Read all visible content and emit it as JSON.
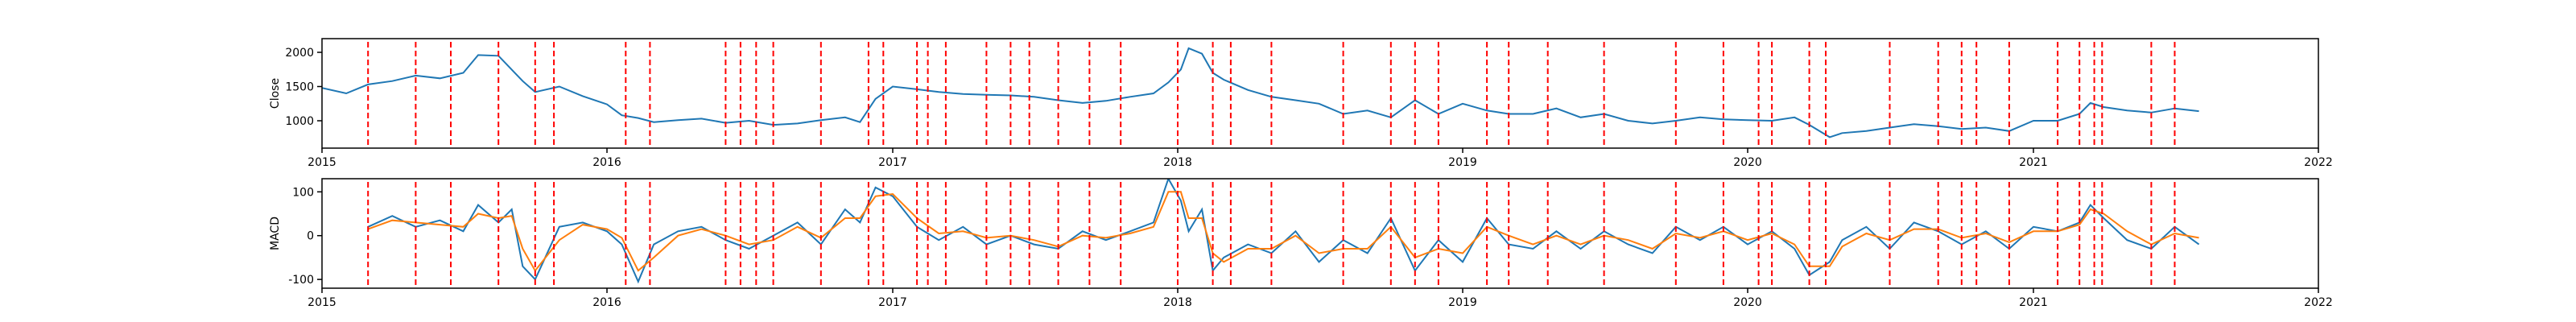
{
  "chart_data": [
    {
      "type": "line",
      "title": "",
      "xlabel": "",
      "ylabel": "Close",
      "xlim": [
        "2015-01-01",
        "2022-01-01"
      ],
      "ylim": [
        600,
        2200
      ],
      "yticks": [
        1000,
        1500,
        2000
      ],
      "xticks": [
        "2015",
        "2016",
        "2017",
        "2018",
        "2019",
        "2020",
        "2021",
        "2022"
      ],
      "grid": false,
      "series": [
        {
          "color": "#1f77b4",
          "x": [
            "2015-01-01",
            "2015-02-01",
            "2015-03-01",
            "2015-04-01",
            "2015-05-01",
            "2015-06-01",
            "2015-07-01",
            "2015-07-20",
            "2015-08-15",
            "2015-09-15",
            "2015-10-01",
            "2015-11-01",
            "2015-12-01",
            "2016-01-01",
            "2016-01-20",
            "2016-02-10",
            "2016-03-01",
            "2016-04-01",
            "2016-05-01",
            "2016-06-01",
            "2016-07-01",
            "2016-08-01",
            "2016-09-01",
            "2016-10-01",
            "2016-11-01",
            "2016-11-20",
            "2016-12-10",
            "2017-01-01",
            "2017-02-01",
            "2017-03-01",
            "2017-04-01",
            "2017-05-01",
            "2017-06-01",
            "2017-07-01",
            "2017-08-01",
            "2017-09-01",
            "2017-10-01",
            "2017-11-01",
            "2017-12-01",
            "2017-12-20",
            "2018-01-05",
            "2018-01-15",
            "2018-02-01",
            "2018-02-15",
            "2018-03-01",
            "2018-04-01",
            "2018-05-01",
            "2018-06-01",
            "2018-07-01",
            "2018-08-01",
            "2018-09-01",
            "2018-10-01",
            "2018-11-01",
            "2018-12-01",
            "2019-01-01",
            "2019-02-01",
            "2019-03-01",
            "2019-04-01",
            "2019-05-01",
            "2019-06-01",
            "2019-07-01",
            "2019-08-01",
            "2019-09-01",
            "2019-10-01",
            "2019-11-01",
            "2019-12-01",
            "2020-01-01",
            "2020-02-01",
            "2020-03-01",
            "2020-03-20",
            "2020-04-15",
            "2020-05-01",
            "2020-06-01",
            "2020-07-01",
            "2020-08-01",
            "2020-09-01",
            "2020-10-01",
            "2020-11-01",
            "2020-12-01",
            "2021-01-01",
            "2021-02-01",
            "2021-03-01",
            "2021-03-15",
            "2021-04-01",
            "2021-05-01",
            "2021-06-01",
            "2021-07-01",
            "2021-08-01"
          ],
          "y": [
            1480,
            1400,
            1530,
            1580,
            1660,
            1620,
            1700,
            1960,
            1950,
            1580,
            1420,
            1500,
            1360,
            1240,
            1080,
            1040,
            980,
            1010,
            1030,
            970,
            1000,
            940,
            960,
            1010,
            1050,
            980,
            1320,
            1500,
            1460,
            1420,
            1390,
            1380,
            1370,
            1350,
            1300,
            1260,
            1290,
            1350,
            1400,
            1560,
            1750,
            2060,
            1980,
            1700,
            1600,
            1450,
            1350,
            1300,
            1250,
            1100,
            1150,
            1050,
            1300,
            1100,
            1250,
            1150,
            1100,
            1100,
            1180,
            1050,
            1100,
            1000,
            960,
            1000,
            1050,
            1020,
            1010,
            1000,
            1050,
            940,
            760,
            820,
            850,
            900,
            950,
            920,
            880,
            900,
            850,
            1000,
            1000,
            1100,
            1260,
            1200,
            1150,
            1120,
            1180,
            1140
          ]
        }
      ]
    },
    {
      "type": "line",
      "title": "",
      "xlabel": "",
      "ylabel": "MACD",
      "xlim": [
        "2015-01-01",
        "2022-01-01"
      ],
      "ylim": [
        -120,
        130
      ],
      "yticks": [
        -100,
        0,
        100
      ],
      "xticks": [
        "2015",
        "2016",
        "2017",
        "2018",
        "2019",
        "2020",
        "2021",
        "2022"
      ],
      "grid": false,
      "series": [
        {
          "color": "#1f77b4",
          "x": [
            "2015-03-01",
            "2015-04-01",
            "2015-05-01",
            "2015-06-01",
            "2015-07-01",
            "2015-07-20",
            "2015-08-15",
            "2015-09-01",
            "2015-09-15",
            "2015-10-01",
            "2015-11-01",
            "2015-12-01",
            "2016-01-01",
            "2016-01-20",
            "2016-02-10",
            "2016-03-01",
            "2016-04-01",
            "2016-05-01",
            "2016-06-01",
            "2016-07-01",
            "2016-08-01",
            "2016-09-01",
            "2016-10-01",
            "2016-11-01",
            "2016-11-20",
            "2016-12-10",
            "2017-01-01",
            "2017-02-01",
            "2017-03-01",
            "2017-04-01",
            "2017-05-01",
            "2017-06-01",
            "2017-07-01",
            "2017-08-01",
            "2017-09-01",
            "2017-10-01",
            "2017-11-01",
            "2017-12-01",
            "2017-12-20",
            "2018-01-05",
            "2018-01-15",
            "2018-02-01",
            "2018-02-15",
            "2018-03-01",
            "2018-04-01",
            "2018-05-01",
            "2018-06-01",
            "2018-07-01",
            "2018-08-01",
            "2018-09-01",
            "2018-10-01",
            "2018-11-01",
            "2018-12-01",
            "2019-01-01",
            "2019-02-01",
            "2019-03-01",
            "2019-04-01",
            "2019-05-01",
            "2019-06-01",
            "2019-07-01",
            "2019-08-01",
            "2019-09-01",
            "2019-10-01",
            "2019-11-01",
            "2019-12-01",
            "2020-01-01",
            "2020-02-01",
            "2020-03-01",
            "2020-03-20",
            "2020-04-15",
            "2020-05-01",
            "2020-06-01",
            "2020-07-01",
            "2020-08-01",
            "2020-09-01",
            "2020-10-01",
            "2020-11-01",
            "2020-12-01",
            "2021-01-01",
            "2021-02-01",
            "2021-03-01",
            "2021-03-15",
            "2021-04-01",
            "2021-05-01",
            "2021-06-01",
            "2021-07-01",
            "2021-08-01"
          ],
          "y": [
            20,
            45,
            20,
            35,
            10,
            70,
            30,
            60,
            -70,
            -100,
            20,
            30,
            10,
            -20,
            -105,
            -20,
            10,
            20,
            -10,
            -30,
            0,
            30,
            -20,
            60,
            30,
            110,
            90,
            20,
            -10,
            20,
            -20,
            0,
            -20,
            -30,
            10,
            -10,
            10,
            30,
            130,
            80,
            10,
            60,
            -80,
            -50,
            -20,
            -40,
            10,
            -60,
            -10,
            -40,
            40,
            -80,
            -10,
            -60,
            40,
            -20,
            -30,
            10,
            -30,
            10,
            -20,
            -40,
            20,
            -10,
            20,
            -20,
            10,
            -30,
            -90,
            -60,
            -10,
            20,
            -30,
            30,
            10,
            -20,
            10,
            -30,
            20,
            10,
            30,
            70,
            40,
            -10,
            -30,
            20,
            -20
          ]
        },
        {
          "color": "#ff7f0e",
          "x": [
            "2015-03-01",
            "2015-04-01",
            "2015-05-01",
            "2015-06-01",
            "2015-07-01",
            "2015-07-20",
            "2015-08-15",
            "2015-09-01",
            "2015-09-15",
            "2015-10-01",
            "2015-11-01",
            "2015-12-01",
            "2016-01-01",
            "2016-01-20",
            "2016-02-10",
            "2016-03-01",
            "2016-04-01",
            "2016-05-01",
            "2016-06-01",
            "2016-07-01",
            "2016-08-01",
            "2016-09-01",
            "2016-10-01",
            "2016-11-01",
            "2016-11-20",
            "2016-12-10",
            "2017-01-01",
            "2017-02-01",
            "2017-03-01",
            "2017-04-01",
            "2017-05-01",
            "2017-06-01",
            "2017-07-01",
            "2017-08-01",
            "2017-09-01",
            "2017-10-01",
            "2017-11-01",
            "2017-12-01",
            "2017-12-20",
            "2018-01-05",
            "2018-01-15",
            "2018-02-01",
            "2018-02-15",
            "2018-03-01",
            "2018-04-01",
            "2018-05-01",
            "2018-06-01",
            "2018-07-01",
            "2018-08-01",
            "2018-09-01",
            "2018-10-01",
            "2018-11-01",
            "2018-12-01",
            "2019-01-01",
            "2019-02-01",
            "2019-03-01",
            "2019-04-01",
            "2019-05-01",
            "2019-06-01",
            "2019-07-01",
            "2019-08-01",
            "2019-09-01",
            "2019-10-01",
            "2019-11-01",
            "2019-12-01",
            "2020-01-01",
            "2020-02-01",
            "2020-03-01",
            "2020-03-20",
            "2020-04-15",
            "2020-05-01",
            "2020-06-01",
            "2020-07-01",
            "2020-08-01",
            "2020-09-01",
            "2020-10-01",
            "2020-11-01",
            "2020-12-01",
            "2021-01-01",
            "2021-02-01",
            "2021-03-01",
            "2021-03-15",
            "2021-04-01",
            "2021-05-01",
            "2021-06-01",
            "2021-07-01",
            "2021-08-01"
          ],
          "y": [
            15,
            35,
            30,
            25,
            20,
            50,
            40,
            45,
            -30,
            -80,
            -10,
            25,
            15,
            -5,
            -80,
            -50,
            0,
            15,
            0,
            -20,
            -10,
            20,
            -5,
            40,
            40,
            90,
            95,
            40,
            5,
            10,
            -5,
            0,
            -10,
            -25,
            0,
            -5,
            5,
            20,
            100,
            100,
            40,
            40,
            -40,
            -60,
            -30,
            -30,
            0,
            -40,
            -30,
            -30,
            20,
            -50,
            -30,
            -40,
            20,
            0,
            -20,
            0,
            -20,
            0,
            -10,
            -30,
            5,
            -5,
            10,
            -10,
            5,
            -20,
            -70,
            -70,
            -25,
            5,
            -10,
            15,
            15,
            -5,
            5,
            -15,
            10,
            10,
            25,
            60,
            50,
            10,
            -20,
            5,
            -5
          ]
        }
      ]
    }
  ],
  "vertical_markers": {
    "color": "#ff0000",
    "dates": [
      "2015-03-01",
      "2015-05-01",
      "2015-06-15",
      "2015-08-15",
      "2015-10-01",
      "2015-10-25",
      "2016-01-25",
      "2016-02-25",
      "2016-06-01",
      "2016-06-20",
      "2016-07-10",
      "2016-08-01",
      "2016-10-01",
      "2016-12-01",
      "2016-12-20",
      "2017-02-01",
      "2017-02-15",
      "2017-03-10",
      "2017-05-01",
      "2017-06-01",
      "2017-06-25",
      "2017-08-01",
      "2017-09-10",
      "2017-10-20",
      "2018-01-01",
      "2018-02-15",
      "2018-03-10",
      "2018-05-01",
      "2018-08-01",
      "2018-10-01",
      "2018-11-01",
      "2018-12-01",
      "2019-02-01",
      "2019-03-01",
      "2019-04-20",
      "2019-07-01",
      "2019-10-01",
      "2019-12-01",
      "2020-01-15",
      "2020-02-01",
      "2020-03-20",
      "2020-04-10",
      "2020-07-01",
      "2020-09-01",
      "2020-10-01",
      "2020-10-20",
      "2020-12-01",
      "2021-02-01",
      "2021-03-01",
      "2021-03-20",
      "2021-03-30",
      "2021-06-01",
      "2021-07-01"
    ]
  }
}
